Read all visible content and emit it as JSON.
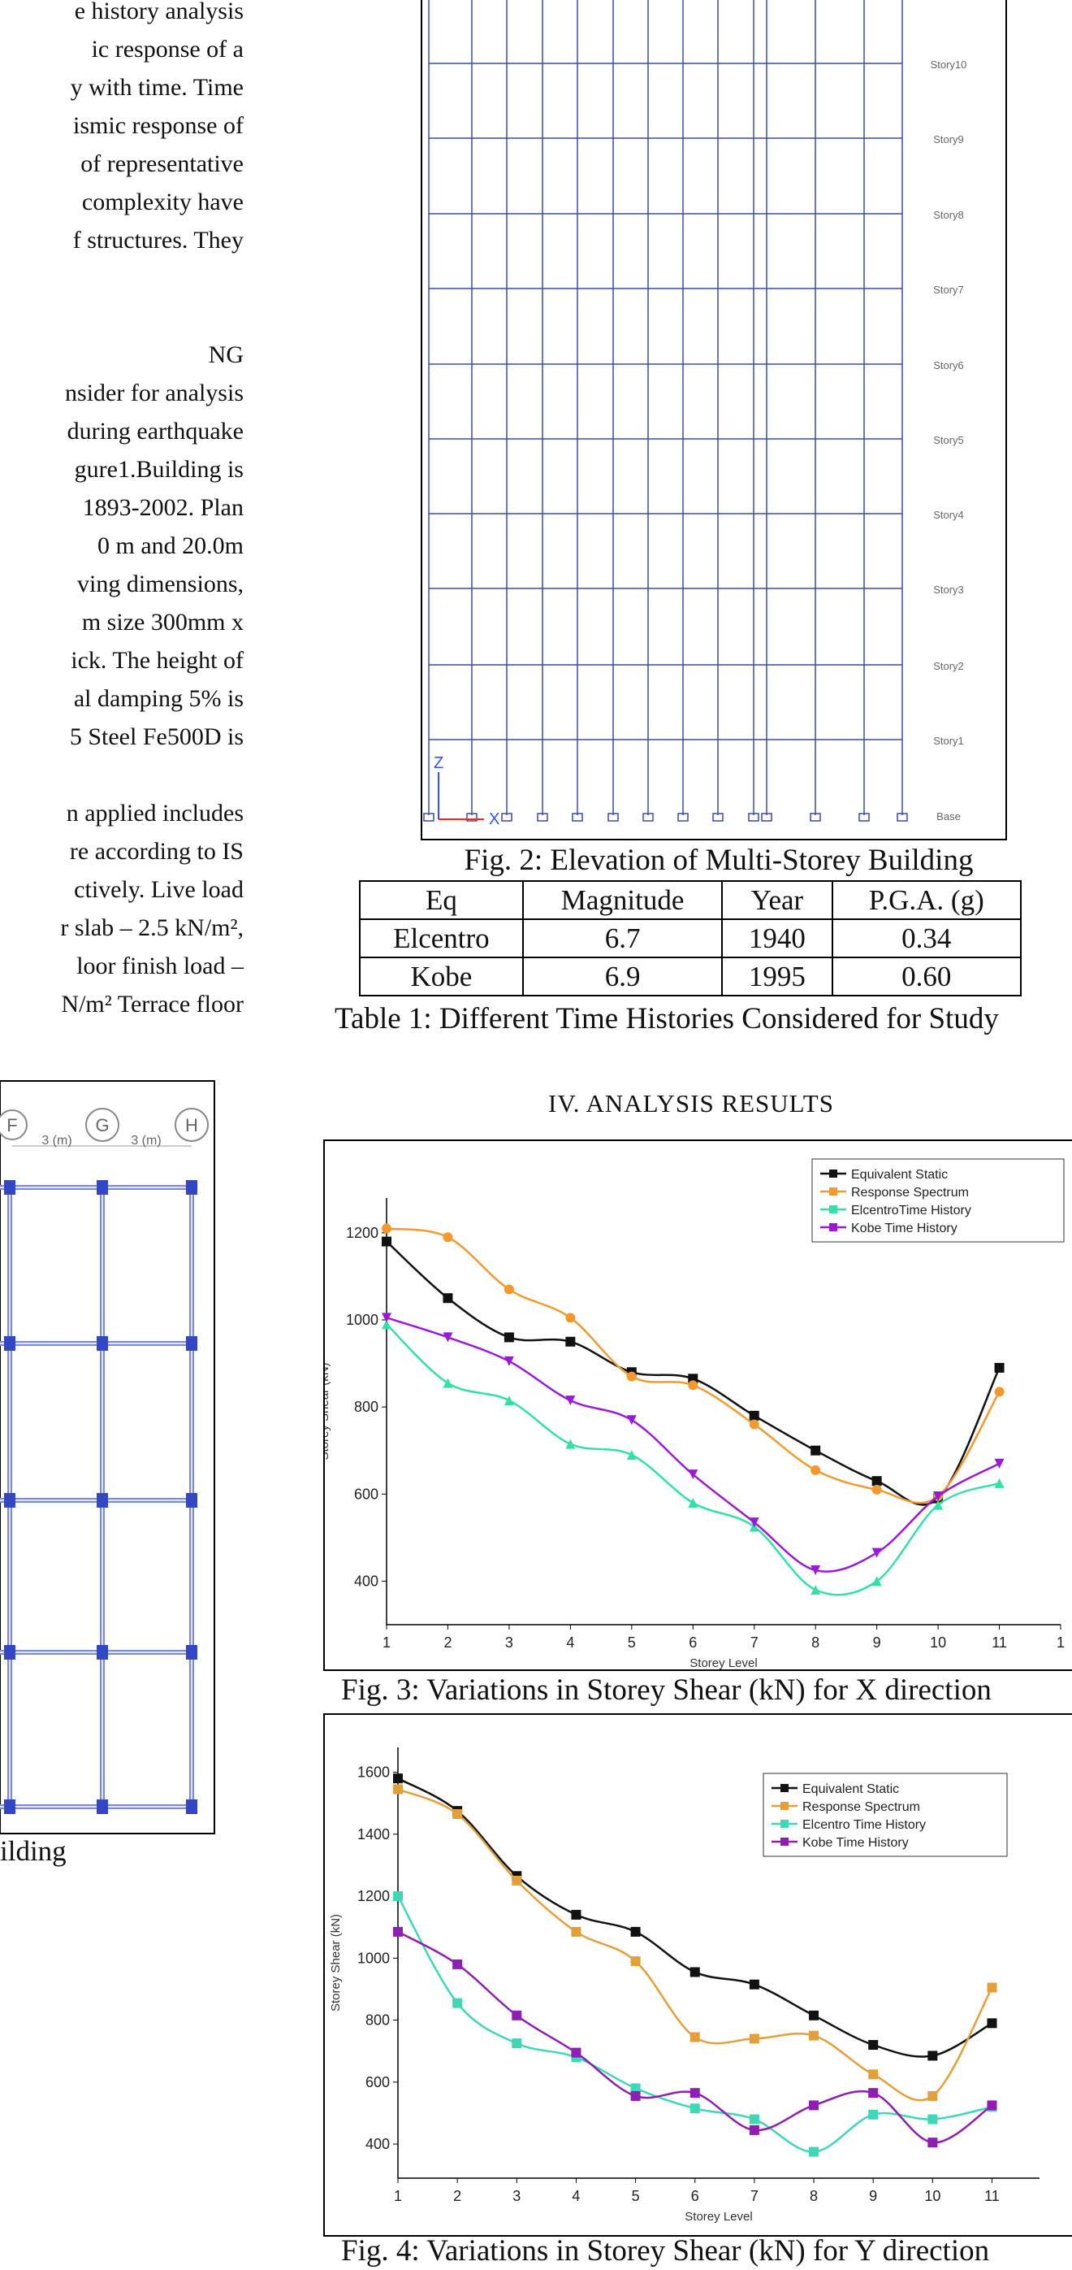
{
  "left_column": {
    "lines": [
      "e history analysis",
      "ic response of a",
      "y with time. Time",
      "ismic response of",
      "of    representative",
      "complexity have",
      "f structures. They",
      "",
      "",
      "NG",
      "nsider for analysis",
      "during earthquake",
      "gure1.Building is",
      "1893-2002. Plan",
      "0 m and 20.0m",
      "ving  dimensions,",
      "m size 300mm x",
      "ick. The height of",
      "al damping 5% is",
      "5 Steel Fe500D is",
      "",
      "n applied includes",
      "re according to IS",
      "ctively. Live load",
      "r slab – 2.5 kN/m²,",
      "loor finish load –",
      "N/m² Terrace floor"
    ],
    "fig1_fragment_caption": "ilding",
    "plan_labels": [
      "F",
      "G",
      "H"
    ],
    "plan_dims": [
      "3 (m)",
      "3 (m)"
    ]
  },
  "elevation": {
    "story_labels": [
      "Story10",
      "Story9",
      "Story8",
      "Story7",
      "Story6",
      "Story5",
      "Story4",
      "Story3",
      "Story2",
      "Story1",
      "Base"
    ],
    "axis_z": "Z",
    "axis_x": "X",
    "caption": "Fig. 2: Elevation of Multi-Storey Building"
  },
  "table1": {
    "headers": [
      "Eq",
      "Magnitude",
      "Year",
      "P.G.A. (g)"
    ],
    "rows": [
      [
        "Elcentro",
        "6.7",
        "1940",
        "0.34"
      ],
      [
        "Kobe",
        "6.9",
        "1995",
        "0.60"
      ]
    ],
    "caption": "Table 1: Different Time Histories Considered for Study"
  },
  "section_heading": "IV.   ANALYSIS RESULTS",
  "chart_data": [
    {
      "type": "line",
      "xlabel": "Storey Level",
      "ylabel": "Storey Shear (kN)",
      "x": [
        1,
        2,
        3,
        4,
        5,
        6,
        7,
        8,
        9,
        10,
        11
      ],
      "xticks": [
        "1",
        "2",
        "3",
        "4",
        "5",
        "6",
        "7",
        "8",
        "9",
        "10",
        "11",
        "1"
      ],
      "yticks": [
        400,
        600,
        800,
        1000,
        1200
      ],
      "ylim": [
        300,
        1280
      ],
      "xlim": [
        1,
        12
      ],
      "legend_position": "top-right",
      "series": [
        {
          "name": "Equivalent Static",
          "color": "#111111",
          "marker": "square",
          "values": [
            1180,
            1050,
            960,
            950,
            880,
            865,
            780,
            700,
            630,
            590,
            890
          ]
        },
        {
          "name": "Response Spectrum",
          "color": "#f29a2e",
          "marker": "circle",
          "values": [
            1210,
            1190,
            1070,
            1005,
            870,
            850,
            760,
            655,
            610,
            595,
            835
          ]
        },
        {
          "name": "ElcentroTime History",
          "color": "#33e0a8",
          "marker": "triangle-up",
          "values": [
            990,
            855,
            815,
            715,
            690,
            580,
            525,
            380,
            400,
            575,
            625
          ]
        },
        {
          "name": "Kobe Time History",
          "color": "#9b19d8",
          "marker": "triangle-down",
          "values": [
            1005,
            960,
            905,
            815,
            770,
            645,
            535,
            425,
            465,
            595,
            670
          ]
        }
      ],
      "caption": "Fig. 3: Variations in Storey Shear (kN) for X direction"
    },
    {
      "type": "line",
      "xlabel": "Storey Level",
      "ylabel": "Storey Shear (kN)",
      "x": [
        1,
        2,
        3,
        4,
        5,
        6,
        7,
        8,
        9,
        10,
        11
      ],
      "xticks": [
        "1",
        "2",
        "3",
        "4",
        "5",
        "6",
        "7",
        "8",
        "9",
        "10",
        "11"
      ],
      "yticks": [
        400,
        600,
        800,
        1000,
        1200,
        1400,
        1600
      ],
      "ylim": [
        290,
        1680
      ],
      "xlim": [
        1,
        11.8
      ],
      "legend_position": "top-right",
      "series": [
        {
          "name": "Equivalent Static",
          "color": "#111111",
          "marker": "square",
          "values": [
            1580,
            1475,
            1265,
            1140,
            1085,
            955,
            915,
            815,
            720,
            685,
            790
          ]
        },
        {
          "name": "Response Spectrum",
          "color": "#e3a03a",
          "marker": "square",
          "values": [
            1545,
            1465,
            1250,
            1085,
            990,
            745,
            740,
            750,
            625,
            555,
            905
          ]
        },
        {
          "name": "Elcentro Time History",
          "color": "#3fd7b6",
          "marker": "square",
          "values": [
            1200,
            855,
            725,
            680,
            580,
            515,
            480,
            375,
            495,
            480,
            520
          ]
        },
        {
          "name": "Kobe Time History",
          "color": "#8e1fb2",
          "marker": "square",
          "values": [
            1085,
            980,
            815,
            695,
            555,
            565,
            445,
            525,
            565,
            405,
            525
          ]
        }
      ],
      "caption": "Fig. 4: Variations in Storey Shear (kN) for Y direction"
    }
  ]
}
